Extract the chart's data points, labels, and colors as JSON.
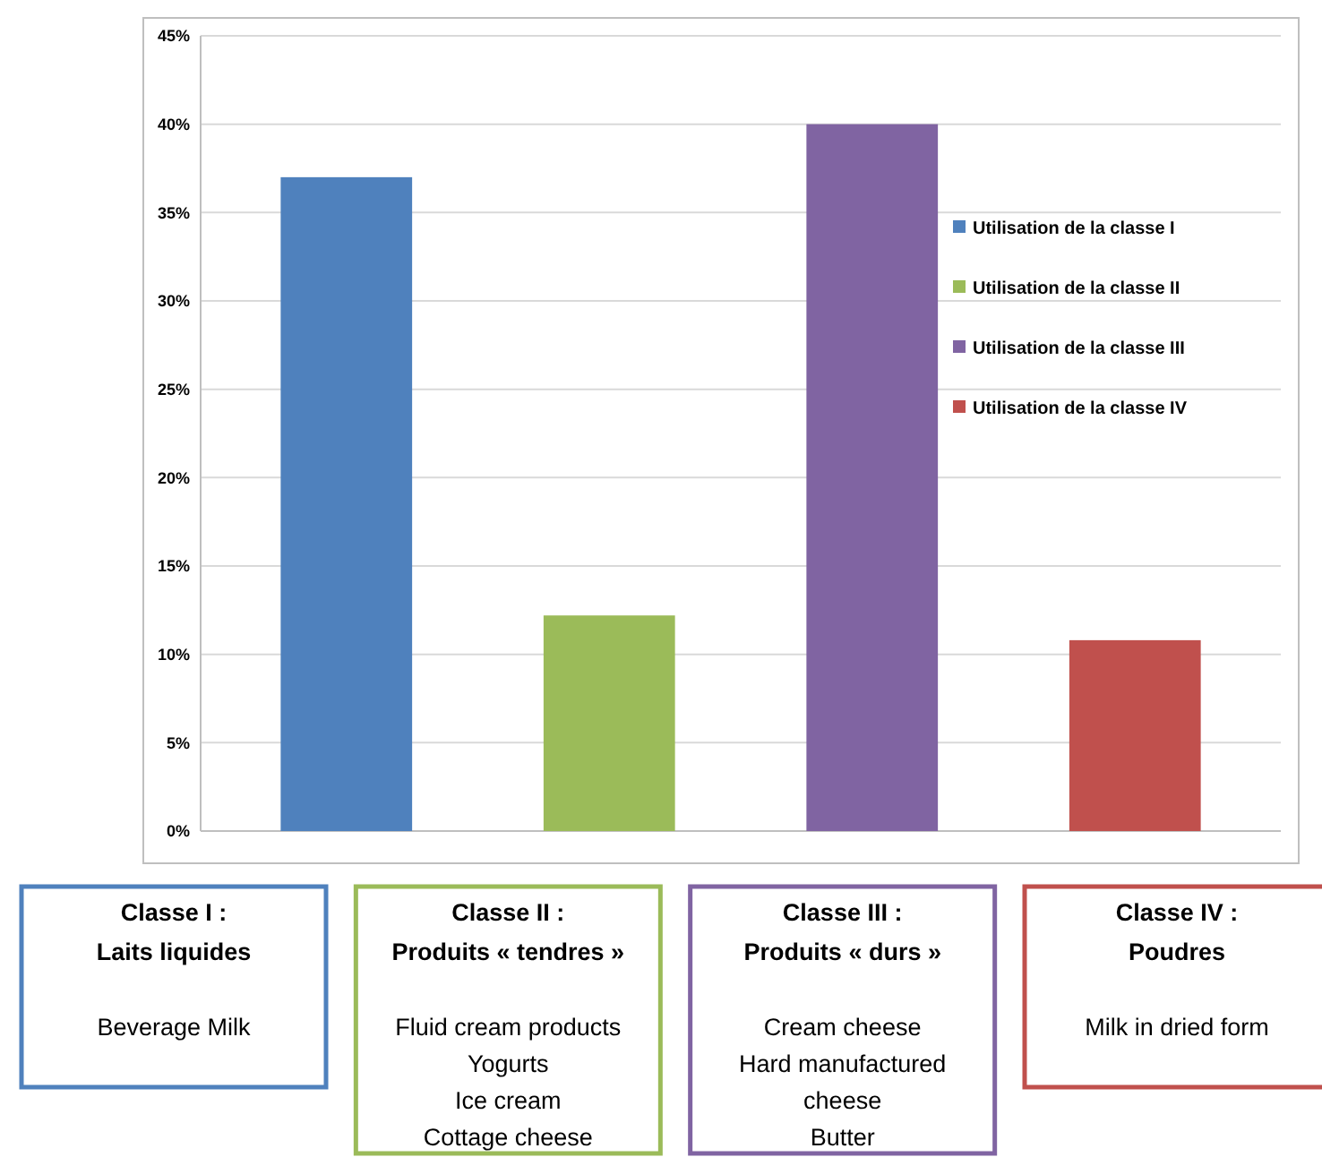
{
  "chart_data": {
    "type": "bar",
    "stacked": true,
    "categories": [
      null,
      null,
      null,
      null
    ],
    "series": [
      {
        "name": "Utilisation de la classe I",
        "color": "#4f81bd",
        "values": [
          37,
          null,
          null,
          null
        ]
      },
      {
        "name": "Utilisation de la classe II",
        "color": "#9bbb59",
        "values": [
          null,
          12.2,
          null,
          null
        ]
      },
      {
        "name": "Utilisation de la classe III",
        "color": "#8064a2",
        "values": [
          null,
          null,
          40,
          null
        ]
      },
      {
        "name": "Utilisation de la classe IV",
        "color": "#c0504d",
        "values": [
          null,
          null,
          null,
          10.8
        ]
      }
    ],
    "ylim": [
      0,
      45
    ],
    "yticks": [
      {
        "value": 0,
        "label": "0%"
      },
      {
        "value": 5,
        "label": "5%"
      },
      {
        "value": 10,
        "label": "10%"
      },
      {
        "value": 15,
        "label": "15%"
      },
      {
        "value": 20,
        "label": "20%"
      },
      {
        "value": 25,
        "label": "25%"
      },
      {
        "value": 30,
        "label": "30%"
      },
      {
        "value": 35,
        "label": "35%"
      },
      {
        "value": 40,
        "label": "40%"
      },
      {
        "value": 45,
        "label": "45%"
      }
    ],
    "grid": "y",
    "legend": "right",
    "annotations": [
      "Classe I :\nLaits liquides\n\nBeverage Milk",
      "Classe II :\nProduits « tendres »\n\nFluid cream products\nYogurts\nIce cream\nCottage cheese",
      "Classe III :\nProduits « durs »\n\nCream cheese\nHard manufactured\ncheese\nButter",
      "Classe IV :\nPoudres\n\nMilk in dried form"
    ]
  }
}
